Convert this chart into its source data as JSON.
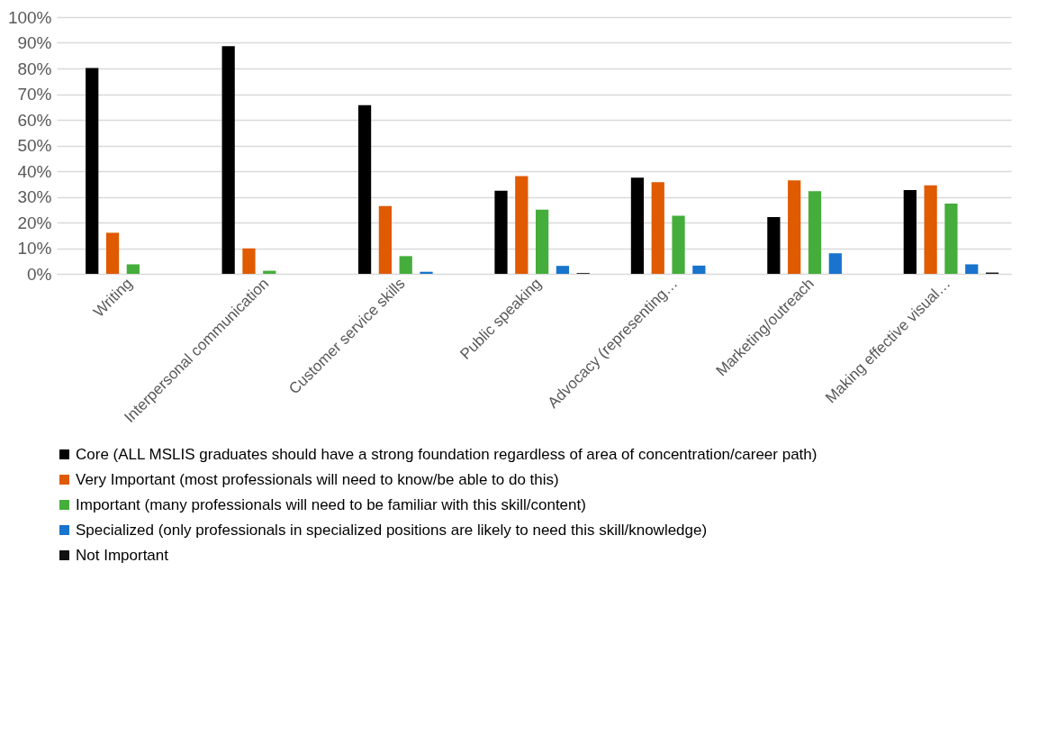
{
  "chart_data": {
    "type": "bar",
    "categories": [
      "Writing",
      "Interpersonal communication",
      "Customer service skills",
      "Public speaking",
      "Advocacy (representing…",
      "Marketing/outreach",
      "Making effective visual…"
    ],
    "series": [
      {
        "name": "Core (ALL MSLIS graduates should have a strong foundation regardless of area of concentration/career path)",
        "color": "#000000",
        "values": [
          80.2,
          88.7,
          65.7,
          32.4,
          37.5,
          22.1,
          32.6
        ]
      },
      {
        "name": "Very Important (most professionals will need to know/be able to do this)",
        "color": "#e05a00",
        "values": [
          16,
          9.9,
          26.4,
          38.1,
          35.7,
          36.4,
          34.5
        ]
      },
      {
        "name": "Important (many professionals will need to be familiar with this skill/content)",
        "color": "#45ad3b",
        "values": [
          3.7,
          1.2,
          6.9,
          25.0,
          22.6,
          32.2,
          27.4
        ]
      },
      {
        "name": "Specialized (only professionals in specialized positions are likely to need this skill/knowledge)",
        "color": "#1874cd",
        "values": [
          0,
          0,
          0.8,
          3.1,
          3.2,
          8.0,
          3.7
        ]
      },
      {
        "name": "Not Important",
        "color": "#111111",
        "values": [
          0,
          0,
          0,
          0.3,
          0,
          0,
          0.5
        ]
      }
    ],
    "ylim": [
      0,
      100
    ],
    "yticks": [
      {
        "value": 0,
        "label": "0%"
      },
      {
        "value": 10,
        "label": "10%"
      },
      {
        "value": 20,
        "label": "20%"
      },
      {
        "value": 30,
        "label": "30%"
      },
      {
        "value": 40,
        "label": "40%"
      },
      {
        "value": 50,
        "label": "50%"
      },
      {
        "value": 60,
        "label": "60%"
      },
      {
        "value": 70,
        "label": "70%"
      },
      {
        "value": 80,
        "label": "80%"
      },
      {
        "value": 90,
        "label": "90%"
      },
      {
        "value": 100,
        "label": "100%"
      }
    ],
    "grid": "y",
    "legend": "bottom"
  }
}
